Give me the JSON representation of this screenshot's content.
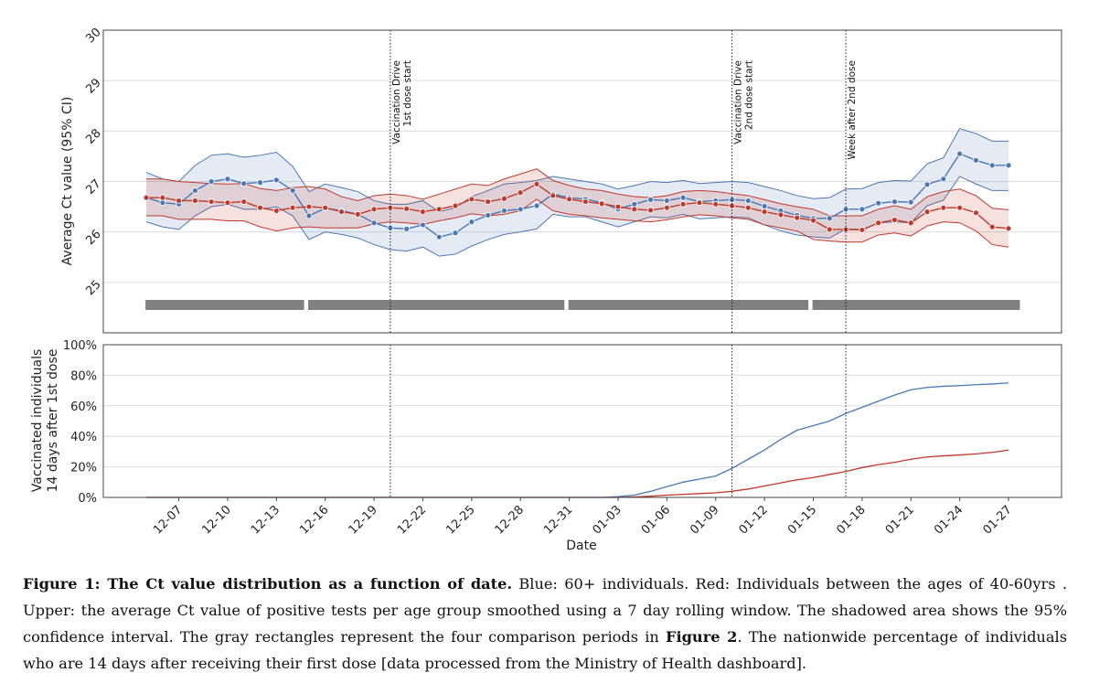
{
  "chart_data": [
    {
      "type": "line",
      "panel": "upper",
      "ylabel": "Average Ct value (95% CI)",
      "ylim": [
        24,
        30
      ],
      "yticks": [
        "25",
        "26",
        "27",
        "28",
        "29",
        "30"
      ],
      "grid": true,
      "x_dates": [
        "12-05",
        "12-06",
        "12-07",
        "12-08",
        "12-09",
        "12-10",
        "12-11",
        "12-12",
        "12-13",
        "12-14",
        "12-15",
        "12-16",
        "12-17",
        "12-18",
        "12-19",
        "12-20",
        "12-21",
        "12-22",
        "12-23",
        "12-24",
        "12-25",
        "12-26",
        "12-27",
        "12-28",
        "12-29",
        "12-30",
        "12-31",
        "01-01",
        "01-02",
        "01-03",
        "01-04",
        "01-05",
        "01-06",
        "01-07",
        "01-08",
        "01-09",
        "01-10",
        "01-11",
        "01-12",
        "01-13",
        "01-14",
        "01-15",
        "01-16",
        "01-17",
        "01-18",
        "01-19",
        "01-20",
        "01-21",
        "01-22",
        "01-23",
        "01-24",
        "01-25",
        "01-26",
        "01-27"
      ],
      "series": [
        {
          "name": "60+",
          "color": "#4a78b4",
          "mean": [
            26.68,
            26.58,
            26.55,
            26.82,
            27.0,
            27.05,
            26.96,
            26.98,
            27.03,
            26.82,
            26.32,
            26.47,
            26.42,
            26.35,
            26.18,
            26.08,
            26.06,
            26.14,
            25.9,
            25.98,
            26.2,
            26.33,
            26.42,
            26.45,
            26.52,
            26.75,
            26.68,
            26.65,
            26.58,
            26.45,
            26.55,
            26.64,
            26.62,
            26.68,
            26.6,
            26.62,
            26.64,
            26.62,
            26.51,
            26.42,
            26.33,
            26.27,
            26.27,
            26.45,
            26.45,
            26.57,
            26.6,
            26.59,
            26.94,
            27.05,
            27.55,
            27.42,
            27.32,
            27.32
          ],
          "upper": [
            27.18,
            27.05,
            27.0,
            27.32,
            27.52,
            27.55,
            27.48,
            27.52,
            27.58,
            27.3,
            26.8,
            26.95,
            26.88,
            26.8,
            26.62,
            26.55,
            26.55,
            26.62,
            26.4,
            26.48,
            26.7,
            26.82,
            26.95,
            26.98,
            27.02,
            27.1,
            27.05,
            27.0,
            26.95,
            26.85,
            26.92,
            27.0,
            26.98,
            27.02,
            26.96,
            26.98,
            27.0,
            26.98,
            26.9,
            26.82,
            26.72,
            26.66,
            26.68,
            26.85,
            26.86,
            26.98,
            27.02,
            27.01,
            27.35,
            27.47,
            28.05,
            27.95,
            27.8,
            27.8
          ],
          "lower": [
            26.2,
            26.1,
            26.05,
            26.32,
            26.5,
            26.55,
            26.45,
            26.45,
            26.5,
            26.32,
            25.85,
            26.0,
            25.95,
            25.88,
            25.75,
            25.65,
            25.62,
            25.7,
            25.52,
            25.56,
            25.72,
            25.85,
            25.95,
            26.0,
            26.06,
            26.35,
            26.3,
            26.3,
            26.2,
            26.1,
            26.2,
            26.3,
            26.28,
            26.35,
            26.26,
            26.28,
            26.3,
            26.28,
            26.14,
            26.02,
            25.94,
            25.9,
            25.88,
            26.06,
            26.05,
            26.18,
            26.2,
            26.18,
            26.52,
            26.63,
            27.1,
            26.95,
            26.82,
            26.82
          ]
        },
        {
          "name": "40-60",
          "color": "#c0392b",
          "mean": [
            26.68,
            26.68,
            26.62,
            26.62,
            26.6,
            26.58,
            26.6,
            26.48,
            26.42,
            26.48,
            26.5,
            26.48,
            26.4,
            26.35,
            26.45,
            26.48,
            26.46,
            26.4,
            26.45,
            26.52,
            26.65,
            26.6,
            26.66,
            26.78,
            26.95,
            26.72,
            26.65,
            26.6,
            26.56,
            26.5,
            26.45,
            26.43,
            26.48,
            26.55,
            26.58,
            26.55,
            26.52,
            26.48,
            26.4,
            26.34,
            26.28,
            26.23,
            26.05,
            26.05,
            26.04,
            26.18,
            26.24,
            26.18,
            26.4,
            26.48,
            26.48,
            26.38,
            26.1,
            26.07
          ],
          "upper": [
            27.05,
            27.05,
            27.0,
            26.98,
            26.96,
            26.95,
            26.96,
            26.86,
            26.82,
            26.88,
            26.9,
            26.85,
            26.7,
            26.62,
            26.72,
            26.75,
            26.72,
            26.65,
            26.75,
            26.85,
            26.95,
            26.92,
            27.05,
            27.15,
            27.25,
            27.02,
            26.92,
            26.85,
            26.82,
            26.75,
            26.7,
            26.68,
            26.72,
            26.8,
            26.82,
            26.8,
            26.76,
            26.72,
            26.64,
            26.56,
            26.5,
            26.45,
            26.32,
            26.32,
            26.32,
            26.45,
            26.52,
            26.45,
            26.7,
            26.8,
            26.85,
            26.72,
            26.47,
            26.44
          ],
          "lower": [
            26.32,
            26.32,
            26.25,
            26.25,
            26.25,
            26.22,
            26.22,
            26.1,
            26.02,
            26.08,
            26.1,
            26.08,
            26.08,
            26.08,
            26.16,
            26.2,
            26.18,
            26.15,
            26.22,
            26.28,
            26.36,
            26.32,
            26.35,
            26.42,
            26.65,
            26.42,
            26.35,
            26.32,
            26.28,
            26.25,
            26.22,
            26.2,
            26.24,
            26.3,
            26.34,
            26.32,
            26.28,
            26.25,
            26.14,
            26.08,
            26.02,
            25.85,
            25.82,
            25.8,
            25.8,
            25.94,
            25.98,
            25.92,
            26.12,
            26.2,
            26.18,
            26.02,
            25.75,
            25.7
          ]
        }
      ],
      "comparison_periods": [
        [
          "12-05",
          "12-14"
        ],
        [
          "12-15",
          "12-30"
        ],
        [
          "12-31",
          "01-14"
        ],
        [
          "01-15",
          "01-27"
        ]
      ],
      "annotations": [
        {
          "date": "12-20",
          "text": [
            "Vaccination Drive",
            "1st dose start"
          ]
        },
        {
          "date": "01-10",
          "text": [
            "Vaccination Drive",
            "2nd dose start"
          ]
        },
        {
          "date": "01-17",
          "text": [
            "Week after 2nd dose"
          ]
        }
      ]
    },
    {
      "type": "line",
      "panel": "lower",
      "xlabel": "Date",
      "ylabel": [
        "Vaccinated individuals",
        "14 days after 1st dose"
      ],
      "ylim": [
        0,
        100
      ],
      "yticks": [
        "0%",
        "20%",
        "40%",
        "60%",
        "80%",
        "100%"
      ],
      "xticks": [
        "12-07",
        "12-10",
        "12-13",
        "12-16",
        "12-19",
        "12-22",
        "12-25",
        "12-28",
        "12-31",
        "01-03",
        "01-06",
        "01-09",
        "01-12",
        "01-15",
        "01-18",
        "01-21",
        "01-24",
        "01-27"
      ],
      "grid": true,
      "points": [
        {
          "name": "60+",
          "color": "#4a78b4",
          "x": [
            "12-05",
            "01-01",
            "01-02",
            "01-03",
            "01-04",
            "01-05",
            "01-06",
            "01-07",
            "01-08",
            "01-09",
            "01-10",
            "01-11",
            "01-12",
            "01-13",
            "01-14",
            "01-15",
            "01-16",
            "01-17",
            "01-18",
            "01-19",
            "01-20",
            "01-21",
            "01-22",
            "01-23",
            "01-24",
            "01-25",
            "01-26",
            "01-27"
          ],
          "y": [
            0,
            0,
            0,
            0.5,
            1.5,
            4,
            7,
            10,
            12,
            14,
            19,
            25,
            31,
            38,
            44,
            47,
            50,
            55,
            59,
            63,
            67,
            70.5,
            72,
            72.8,
            73.2,
            73.8,
            74.3,
            75
          ]
        },
        {
          "name": "40-60",
          "color": "#c0392b",
          "x": [
            "12-05",
            "01-03",
            "01-04",
            "01-05",
            "01-06",
            "01-07",
            "01-08",
            "01-09",
            "01-10",
            "01-11",
            "01-12",
            "01-13",
            "01-14",
            "01-15",
            "01-16",
            "01-17",
            "01-18",
            "01-19",
            "01-20",
            "01-21",
            "01-22",
            "01-23",
            "01-24",
            "01-25",
            "01-26",
            "01-27"
          ],
          "y": [
            0,
            0,
            0.3,
            0.8,
            1.5,
            2,
            2.5,
            3,
            4,
            5.5,
            7.5,
            9.5,
            11.5,
            13,
            15,
            17,
            19.5,
            21.5,
            23,
            25,
            26.5,
            27.2,
            27.8,
            28.5,
            29.5,
            31
          ]
        }
      ],
      "annotations_dates": [
        "12-20",
        "01-10",
        "01-17"
      ]
    }
  ],
  "caption": {
    "bold_lead": "Figure 1: The Ct value distribution as a function of date.",
    "text1": " Blue: 60+ individuals. Red: Individuals between the ages of 40-60yrs . Upper: the average Ct value of positive tests per age group smoothed using a 7 day rolling window. The shadowed area shows the 95% confidence interval. The gray rectangles represent the four comparison periods in ",
    "bold_ref": "Figure 2",
    "text2": ". The nationwide percentage of individuals who are 14 days after receiving their first dose [data processed from the Ministry of Health dashboard]."
  }
}
